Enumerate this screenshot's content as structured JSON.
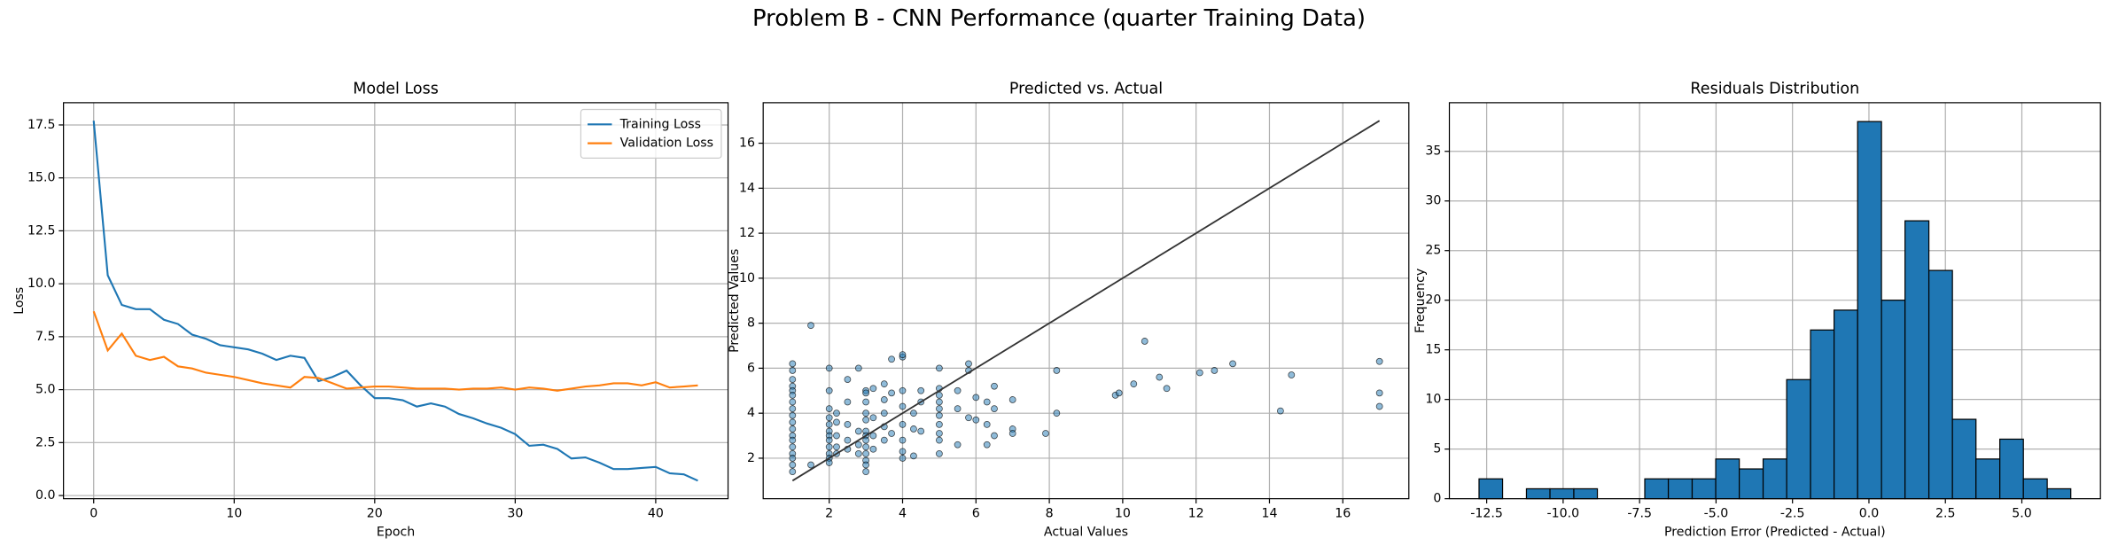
{
  "title": "Problem B - CNN Performance (quarter Training Data)",
  "chart_data": [
    {
      "type": "line",
      "title": "Model Loss",
      "x_label": "Epoch",
      "y_label": "Loss",
      "x": [
        0,
        1,
        2,
        3,
        4,
        5,
        6,
        7,
        8,
        9,
        10,
        11,
        12,
        13,
        14,
        15,
        16,
        17,
        18,
        19,
        20,
        21,
        22,
        23,
        24,
        25,
        26,
        27,
        28,
        29,
        30,
        31,
        32,
        33,
        34,
        35,
        36,
        37,
        38,
        39,
        40,
        41,
        42,
        43
      ],
      "series": [
        {
          "name": "Training Loss",
          "color": "#1f77b4",
          "values": [
            17.7,
            10.4,
            9.0,
            8.8,
            8.8,
            8.3,
            8.1,
            7.6,
            7.4,
            7.1,
            7.0,
            6.9,
            6.7,
            6.4,
            6.6,
            6.5,
            5.4,
            5.6,
            5.9,
            5.2,
            4.6,
            4.6,
            4.5,
            4.2,
            4.35,
            4.2,
            3.85,
            3.65,
            3.4,
            3.2,
            2.9,
            2.35,
            2.4,
            2.2,
            1.75,
            1.8,
            1.55,
            1.25,
            1.25,
            1.3,
            1.35,
            1.05,
            1.0,
            0.7
          ]
        },
        {
          "name": "Validation Loss",
          "color": "#ff7f0e",
          "values": [
            8.7,
            6.85,
            7.65,
            6.6,
            6.4,
            6.55,
            6.1,
            6.0,
            5.8,
            5.7,
            5.6,
            5.45,
            5.3,
            5.2,
            5.1,
            5.6,
            5.55,
            5.3,
            5.05,
            5.1,
            5.15,
            5.15,
            5.1,
            5.05,
            5.05,
            5.05,
            5.0,
            5.05,
            5.05,
            5.1,
            5.0,
            5.1,
            5.05,
            4.95,
            5.05,
            5.15,
            5.2,
            5.3,
            5.3,
            5.2,
            5.35,
            5.1,
            5.15,
            5.2
          ]
        }
      ],
      "xlim": [
        -2.15,
        45.15
      ],
      "xticks": [
        0,
        10,
        20,
        30,
        40
      ],
      "ylim": [
        -0.15,
        18.55
      ],
      "yticks": [
        {
          "value": 0,
          "label": "0.0"
        },
        2.5,
        {
          "value": 5,
          "label": "5.0"
        },
        7.5,
        {
          "value": 10,
          "label": "10.0"
        },
        12.5,
        {
          "value": 15,
          "label": "15.0"
        },
        17.5
      ],
      "grid": true,
      "legend": "upper right"
    },
    {
      "type": "scatter",
      "title": "Predicted vs. Actual",
      "x_label": "Actual Values",
      "y_label": "Predicted Values",
      "color": "#1f77b4",
      "x": [
        1,
        1,
        1,
        1,
        1,
        1,
        1,
        1,
        1,
        1,
        1,
        1,
        1,
        1,
        1,
        1,
        1,
        1,
        1.5,
        1.5,
        2,
        2,
        2,
        2,
        2,
        2,
        2,
        2,
        2,
        2,
        2,
        2,
        2.2,
        2.2,
        2.2,
        2.2,
        2.2,
        2.5,
        2.5,
        2.5,
        2.5,
        2.5,
        2.8,
        2.8,
        2.8,
        2.8,
        3,
        3,
        3,
        3,
        3,
        3,
        3,
        3,
        3,
        3,
        3,
        3,
        3,
        3.2,
        3.2,
        3.2,
        3.2,
        3.5,
        3.5,
        3.5,
        3.5,
        3.5,
        3.7,
        3.7,
        3.7,
        4,
        4,
        4,
        4,
        4,
        4,
        4,
        4,
        4.3,
        4.3,
        4.3,
        4.5,
        4.5,
        4.5,
        5,
        5,
        5,
        5,
        5,
        5,
        5,
        5,
        5,
        5,
        5.5,
        5.5,
        5.5,
        5.8,
        5.8,
        5.8,
        6,
        6,
        6.3,
        6.3,
        6.3,
        6.5,
        6.5,
        6.5,
        7,
        7,
        7,
        7.9,
        8.2,
        8.2,
        9.8,
        9.9,
        10.3,
        10.6,
        11,
        11.2,
        12.1,
        12.5,
        13.0,
        14.3,
        14.6,
        17,
        17,
        17
      ],
      "y": [
        6.2,
        5.9,
        5.5,
        5.2,
        5.0,
        4.8,
        4.5,
        4.2,
        3.9,
        3.6,
        3.3,
        3.0,
        2.8,
        2.5,
        2.2,
        2.0,
        1.7,
        1.4,
        7.9,
        1.7,
        6.0,
        5.0,
        4.2,
        3.8,
        3.5,
        3.2,
        3.0,
        2.8,
        2.5,
        2.2,
        2.0,
        1.8,
        4.0,
        3.6,
        3.0,
        2.5,
        2.2,
        5.5,
        4.5,
        3.5,
        2.8,
        2.4,
        6.0,
        3.2,
        2.6,
        2.2,
        5.0,
        4.9,
        4.5,
        4.0,
        3.7,
        3.2,
        3.0,
        2.8,
        2.5,
        2.2,
        1.9,
        1.7,
        1.4,
        5.1,
        3.8,
        3.0,
        2.4,
        5.3,
        4.6,
        4.0,
        3.4,
        2.8,
        6.4,
        4.9,
        3.1,
        6.5,
        6.6,
        5.0,
        4.3,
        3.5,
        2.8,
        2.3,
        2.0,
        4.0,
        3.3,
        2.1,
        5.0,
        4.5,
        3.2,
        6.0,
        5.1,
        4.8,
        4.5,
        4.2,
        3.9,
        3.5,
        3.1,
        2.8,
        2.2,
        5.0,
        4.2,
        2.6,
        6.2,
        5.9,
        3.8,
        4.7,
        3.7,
        4.5,
        3.5,
        2.6,
        5.2,
        4.2,
        3.0,
        4.6,
        3.3,
        3.1,
        3.1,
        5.9,
        4.0,
        4.8,
        4.9,
        5.3,
        7.2,
        5.6,
        5.1,
        5.8,
        5.9,
        6.2,
        4.1,
        5.7,
        6.3,
        4.9,
        4.3
      ],
      "identity_line": {
        "color": "#333333",
        "x": [
          1,
          17
        ],
        "y": [
          1,
          17
        ]
      },
      "xlim": [
        0.2,
        17.8
      ],
      "xticks": [
        2,
        4,
        6,
        8,
        10,
        12,
        14,
        16
      ],
      "ylim": [
        0.2,
        17.8
      ],
      "yticks": [
        2,
        4,
        6,
        8,
        10,
        12,
        14,
        16
      ],
      "grid": true
    },
    {
      "type": "histogram",
      "title": "Residuals Distribution",
      "x_label": "Prediction Error (Predicted - Actual)",
      "y_label": "Frequency",
      "color": "#1f77b4",
      "bins": [
        -12.75,
        -11.98,
        -11.2,
        -10.43,
        -9.65,
        -8.88,
        -8.11,
        -7.33,
        -6.56,
        -5.78,
        -5.01,
        -4.24,
        -3.46,
        -2.69,
        -1.91,
        -1.14,
        -0.37,
        0.41,
        1.18,
        1.96,
        2.73,
        3.5,
        4.28,
        5.05,
        5.83,
        6.6
      ],
      "counts": [
        2,
        0,
        1,
        1,
        1,
        0,
        0,
        2,
        2,
        2,
        4,
        3,
        4,
        12,
        17,
        19,
        38,
        20,
        28,
        23,
        8,
        4,
        6,
        2,
        1
      ],
      "xlim": [
        -13.72,
        7.57
      ],
      "xticks": [
        -12.5,
        {
          "value": -10,
          "label": "-10.0"
        },
        -7.5,
        {
          "value": -5,
          "label": "-5.0"
        },
        -2.5,
        {
          "value": 0,
          "label": "0.0"
        },
        2.5,
        {
          "value": 5,
          "label": "5.0"
        }
      ],
      "ylim": [
        0,
        39.9
      ],
      "yticks": [
        0,
        5,
        10,
        15,
        20,
        25,
        30,
        35
      ],
      "grid": true
    }
  ]
}
